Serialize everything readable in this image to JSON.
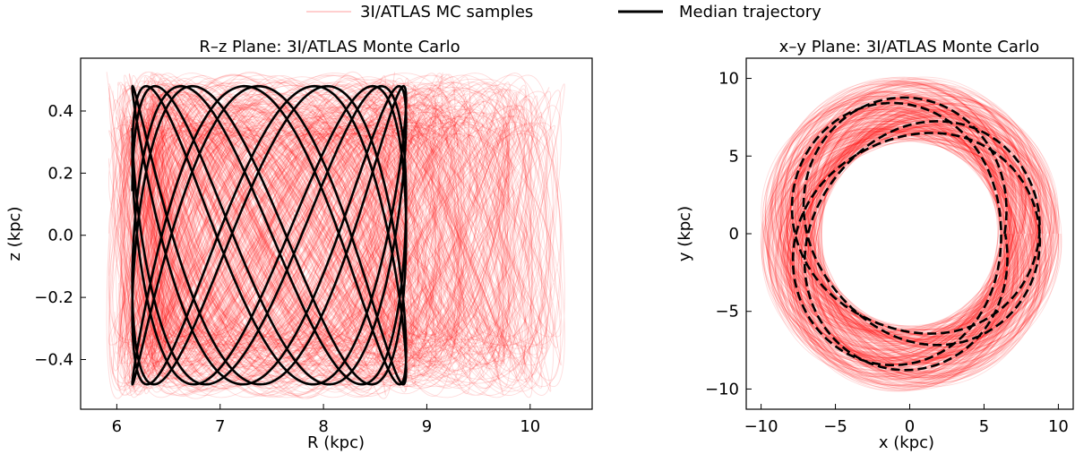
{
  "legend": {
    "items": [
      {
        "label": "3I/ATLAS MC samples",
        "color": "#ff0000",
        "style": "thin-translucent"
      },
      {
        "label": "Median trajectory",
        "color": "#000000",
        "style": "thick-solid"
      }
    ]
  },
  "chart_data": [
    {
      "type": "line",
      "title": "R–z Plane: 3I/ATLAS Monte Carlo",
      "xlabel": "R (kpc)",
      "ylabel": "z (kpc)",
      "xlim": [
        5.65,
        10.6
      ],
      "ylim": [
        -0.56,
        0.57
      ],
      "xticks": [
        6,
        7,
        8,
        9,
        10
      ],
      "xtick_labels": [
        "6",
        "7",
        "8",
        "9",
        "10"
      ],
      "yticks": [
        -0.4,
        -0.2,
        0.0,
        0.2,
        0.4
      ],
      "ytick_labels": [
        "−0.4",
        "−0.2",
        "0.0",
        "0.2",
        "0.4"
      ],
      "grid": false,
      "series": [
        {
          "name": "3I/ATLAS MC samples",
          "color": "#ff0000",
          "samples": 100,
          "R_min_range": [
            5.9,
            6.45
          ],
          "R_max_range": [
            8.5,
            10.35
          ],
          "z_max_range": [
            0.32,
            0.53
          ]
        },
        {
          "name": "Median trajectory",
          "color": "#000000",
          "R_min": 6.15,
          "R_max": 8.8,
          "z_max": 0.48,
          "z_envelope_inner_edge": 0.37
        }
      ]
    },
    {
      "type": "line",
      "title": "x–y Plane: 3I/ATLAS Monte Carlo",
      "xlabel": "x (kpc)",
      "ylabel": "y (kpc)",
      "xlim": [
        -11,
        11
      ],
      "ylim": [
        -11.3,
        11.3
      ],
      "xticks": [
        -10,
        -5,
        0,
        5,
        10
      ],
      "xtick_labels": [
        "−10",
        "−5",
        "0",
        "5",
        "10"
      ],
      "yticks": [
        -10,
        -5,
        0,
        5,
        10
      ],
      "ytick_labels": [
        "−10",
        "−5",
        "0",
        "5",
        "10"
      ],
      "grid": false,
      "series": [
        {
          "name": "3I/ATLAS MC samples",
          "color": "#ff0000",
          "samples": 100,
          "radius_range": [
            5.9,
            10.3
          ]
        },
        {
          "name": "Median trajectory",
          "color": "#000000",
          "line_style": "dashed",
          "R_min": 6.15,
          "R_max": 8.8
        }
      ]
    }
  ]
}
